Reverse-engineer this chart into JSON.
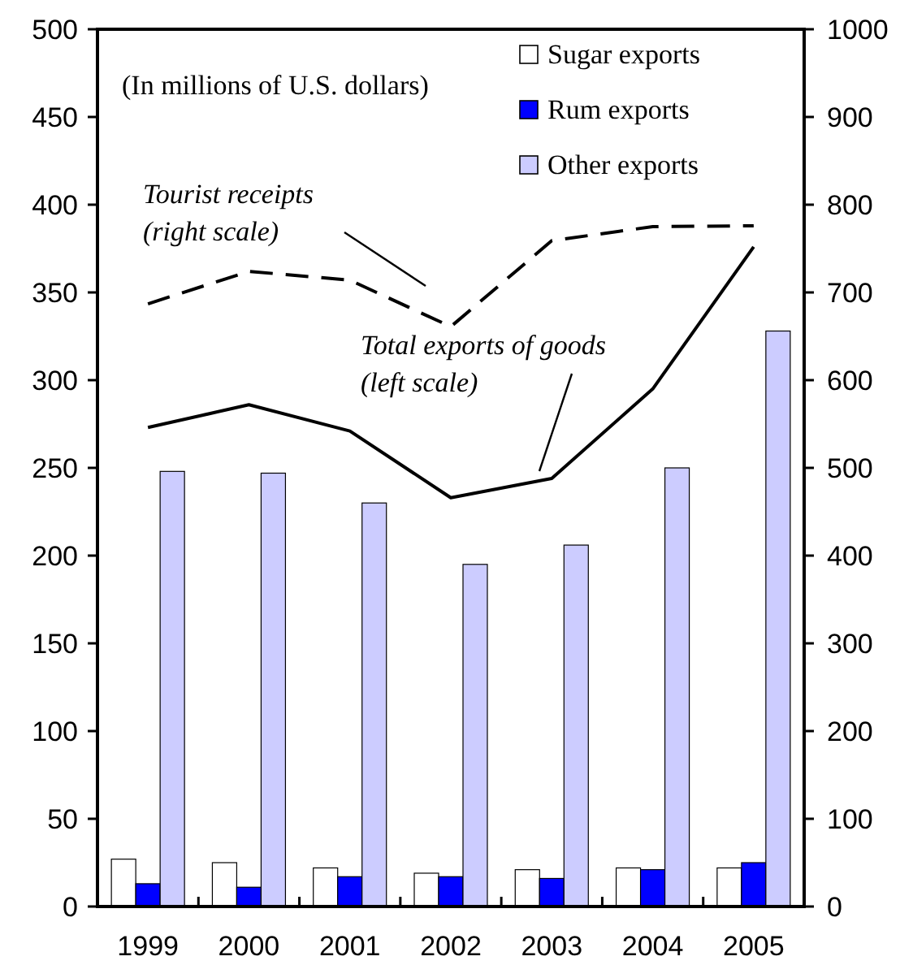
{
  "chart_data": {
    "type": "bar",
    "categories": [
      "1999",
      "2000",
      "2001",
      "2002",
      "2003",
      "2004",
      "2005"
    ],
    "series": [
      {
        "name": "Sugar exports",
        "color": "#ffffff",
        "values": [
          27,
          25,
          22,
          19,
          21,
          22,
          22
        ]
      },
      {
        "name": "Rum exports",
        "color": "#0000ff",
        "values": [
          13,
          11,
          17,
          17,
          16,
          21,
          25
        ]
      },
      {
        "name": "Other exports",
        "color": "#ccccff",
        "values": [
          248,
          247,
          230,
          195,
          206,
          250,
          328
        ]
      },
      {
        "type": "line",
        "name": "Tourist receipts (right scale)",
        "color": "#000000",
        "line_style": "dashed",
        "axis": "y2",
        "values": [
          687,
          724,
          714,
          661,
          759,
          775,
          776
        ]
      },
      {
        "type": "line",
        "name": "Total exports of goods (left scale)",
        "color": "#000000",
        "line_style": "solid",
        "values": [
          273,
          286,
          271,
          233,
          244,
          295,
          376
        ]
      }
    ],
    "ylim": [
      0,
      500
    ],
    "yticks": [
      0,
      50,
      100,
      150,
      200,
      250,
      300,
      350,
      400,
      450,
      500
    ],
    "y2lim": [
      0,
      1000
    ],
    "y2ticks": [
      0,
      100,
      200,
      300,
      400,
      500,
      600,
      700,
      800,
      900,
      1000
    ],
    "annotations": [
      "(In millions of U.S. dollars)"
    ],
    "legend": "top right",
    "grid": false
  }
}
